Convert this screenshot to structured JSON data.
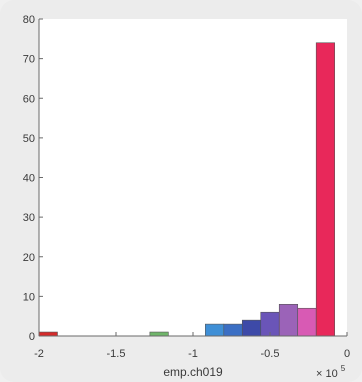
{
  "chart_data": {
    "type": "bar",
    "xlabel": "emp.ch019",
    "ylabel": "",
    "xlim": [
      -2,
      0
    ],
    "ylim": [
      0,
      80
    ],
    "x_multiplier_label": "× 10",
    "x_multiplier_exponent": "5",
    "x_ticks": [
      {
        "value": -2,
        "label": "-2"
      },
      {
        "value": -1.5,
        "label": "-1.5"
      },
      {
        "value": -1,
        "label": "-1"
      },
      {
        "value": -0.5,
        "label": "-0.5"
      },
      {
        "value": 0,
        "label": "0"
      }
    ],
    "y_ticks": [
      {
        "value": 0,
        "label": "0"
      },
      {
        "value": 10,
        "label": "10"
      },
      {
        "value": 20,
        "label": "20"
      },
      {
        "value": 30,
        "label": "30"
      },
      {
        "value": 40,
        "label": "40"
      },
      {
        "value": 50,
        "label": "50"
      },
      {
        "value": 60,
        "label": "60"
      },
      {
        "value": 70,
        "label": "70"
      },
      {
        "value": 80,
        "label": "80"
      }
    ],
    "bins": [
      {
        "x0": -2.0,
        "x1": -1.88,
        "count": 1,
        "color": "#d42a2a"
      },
      {
        "x0": -1.88,
        "x1": -1.76,
        "count": 0,
        "color": "#d42a2a"
      },
      {
        "x0": -1.76,
        "x1": -1.64,
        "count": 0,
        "color": "#d42a2a"
      },
      {
        "x0": -1.64,
        "x1": -1.52,
        "count": 0,
        "color": "#d42a2a"
      },
      {
        "x0": -1.52,
        "x1": -1.4,
        "count": 0,
        "color": "#d42a2a"
      },
      {
        "x0": -1.4,
        "x1": -1.28,
        "count": 0,
        "color": "#d42a2a"
      },
      {
        "x0": -1.28,
        "x1": -1.16,
        "count": 1,
        "color": "#6fb56a"
      },
      {
        "x0": -1.16,
        "x1": -1.04,
        "count": 0,
        "color": "#6fb56a"
      },
      {
        "x0": -1.04,
        "x1": -0.92,
        "count": 0,
        "color": "#6fb56a"
      },
      {
        "x0": -0.92,
        "x1": -0.8,
        "count": 3,
        "color": "#3f8fd6"
      },
      {
        "x0": -0.8,
        "x1": -0.68,
        "count": 3,
        "color": "#3b6fc4"
      },
      {
        "x0": -0.68,
        "x1": -0.56,
        "count": 4,
        "color": "#3d4aa8"
      },
      {
        "x0": -0.56,
        "x1": -0.44,
        "count": 6,
        "color": "#6a55b8"
      },
      {
        "x0": -0.44,
        "x1": -0.32,
        "count": 8,
        "color": "#9b63b8"
      },
      {
        "x0": -0.32,
        "x1": -0.2,
        "count": 7,
        "color": "#d85ab4"
      },
      {
        "x0": -0.2,
        "x1": -0.08,
        "count": 74,
        "color": "#e8285a"
      }
    ],
    "grid": false,
    "legend": "none"
  }
}
